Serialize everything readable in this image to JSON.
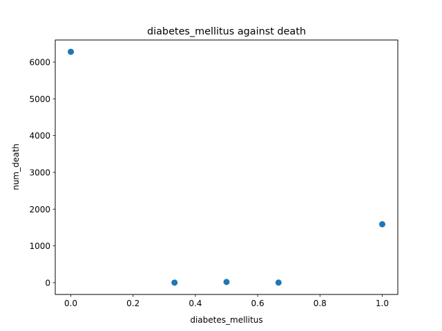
{
  "chart_data": {
    "type": "scatter",
    "title": "diabetes_mellitus against death",
    "xlabel": "diabetes_mellitus",
    "ylabel": "num_death",
    "xlim": [
      -0.05,
      1.05
    ],
    "ylim": [
      -320,
      6600
    ],
    "xticks": [
      0.0,
      0.2,
      0.4,
      0.6,
      0.8,
      1.0
    ],
    "xtick_labels": [
      "0.0",
      "0.2",
      "0.4",
      "0.6",
      "0.8",
      "1.0"
    ],
    "yticks": [
      0,
      1000,
      2000,
      3000,
      4000,
      5000,
      6000
    ],
    "ytick_labels": [
      "0",
      "1000",
      "2000",
      "3000",
      "4000",
      "5000",
      "6000"
    ],
    "grid": false,
    "marker_color": "#1f77b4",
    "points": [
      {
        "x": 0.0,
        "y": 6280
      },
      {
        "x": 0.333,
        "y": 2
      },
      {
        "x": 0.5,
        "y": 20
      },
      {
        "x": 0.667,
        "y": 3
      },
      {
        "x": 1.0,
        "y": 1590
      }
    ]
  }
}
